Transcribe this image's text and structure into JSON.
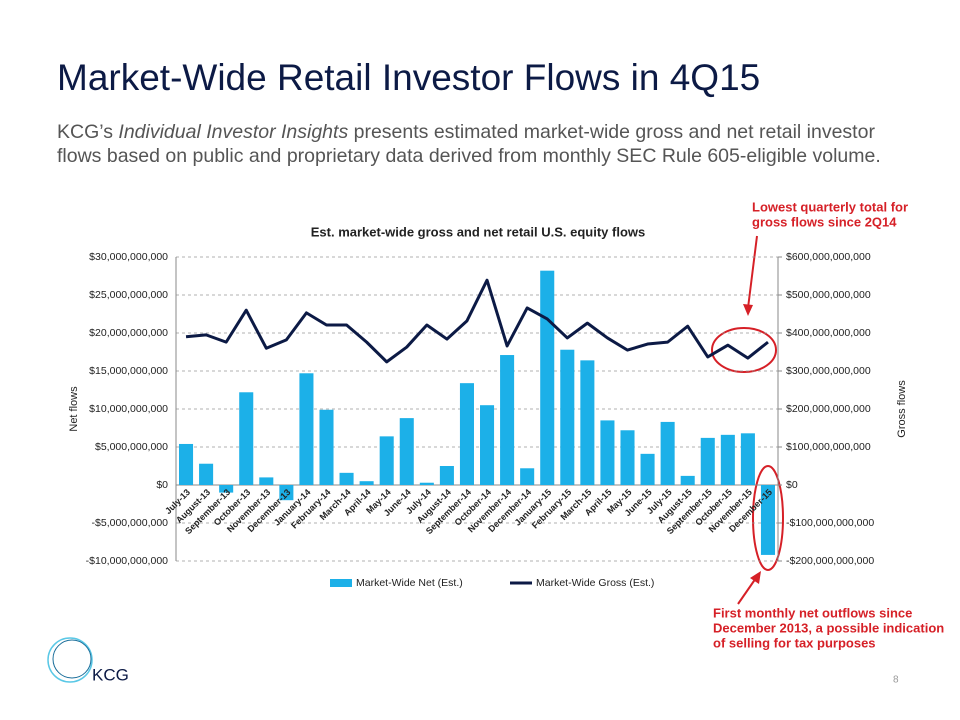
{
  "page": {
    "title": "Market-Wide Retail Investor Flows in 4Q15",
    "intro": [
      "KCG’s ",
      "Individual Investor Insights",
      " presents estimated market-wide gross and net retail investor flows based on public and proprietary data derived from monthly SEC Rule 605-eligible volume."
    ],
    "annotation_top": [
      "Lowest quarterly total for",
      "gross flows since 2Q14"
    ],
    "annotation_bottom": [
      "First monthly net outflows since",
      "December 2013, a possible indication",
      "of selling for tax purposes"
    ],
    "logo": "KCG",
    "page_number": "8"
  },
  "chart_data": {
    "type": "bar-line",
    "title": "Est. market-wide gross and net retail U.S. equity flows",
    "y_label": "Net flows",
    "y2_label": "Gross flows",
    "categories": [
      "July-13",
      "August-13",
      "September-13",
      "October-13",
      "November-13",
      "December-13",
      "January-14",
      "February-14",
      "March-14",
      "April-14",
      "May-14",
      "June-14",
      "July-14",
      "August-14",
      "September-14",
      "October-14",
      "November-14",
      "December-14",
      "January-15",
      "February-15",
      "March-15",
      "April-15",
      "May-15",
      "June-15",
      "July-15",
      "August-15",
      "September-15",
      "October-15",
      "November-15",
      "December-15"
    ],
    "series": [
      {
        "name": "Market-Wide Net (Est.)",
        "type": "bar",
        "color": "#1cb0e8",
        "values": [
          5400000000,
          2800000000,
          -1000000000,
          12200000000,
          1000000000,
          -2000000000,
          14700000000,
          9900000000,
          1600000000,
          500000000,
          6400000000,
          8800000000,
          300000000,
          2500000000,
          13400000000,
          10500000000,
          17100000000,
          2200000000,
          28200000000,
          17800000000,
          16400000000,
          8500000000,
          7200000000,
          4100000000,
          8300000000,
          1200000000,
          6200000000,
          6600000000,
          6800000000,
          -9200000000
        ]
      },
      {
        "name": "Market-Wide Gross (Est.)",
        "type": "line",
        "axis": "y2",
        "color": "#0c1a45",
        "values": [
          390000000000,
          395000000000,
          376000000000,
          460000000000,
          360000000000,
          382000000000,
          453000000000,
          421000000000,
          421000000000,
          376000000000,
          324000000000,
          363000000000,
          421000000000,
          384000000000,
          432000000000,
          539000000000,
          366000000000,
          466000000000,
          437000000000,
          387000000000,
          426000000000,
          387000000000,
          355000000000,
          371000000000,
          376000000000,
          418000000000,
          337000000000,
          368000000000,
          334000000000,
          376000000000
        ]
      }
    ],
    "ylim": [
      -10000000000,
      30000000000
    ],
    "yticks": [
      {
        "value": -10000000000,
        "label": "-$10,000,000,000"
      },
      {
        "value": -5000000000,
        "label": "-$5,000,000,000"
      },
      {
        "value": 0,
        "label": "$0"
      },
      {
        "value": 5000000000,
        "label": "$5,000,000,000"
      },
      {
        "value": 10000000000,
        "label": "$10,000,000,000"
      },
      {
        "value": 15000000000,
        "label": "$15,000,000,000"
      },
      {
        "value": 20000000000,
        "label": "$20,000,000,000"
      },
      {
        "value": 25000000000,
        "label": "$25,000,000,000"
      },
      {
        "value": 30000000000,
        "label": "$30,000,000,000"
      }
    ],
    "y2lim": [
      -200000000000,
      600000000000
    ],
    "y2ticks": [
      {
        "value": -200000000000,
        "label": "-$200,000,000,000"
      },
      {
        "value": -100000000000,
        "label": "-$100,000,000,000"
      },
      {
        "value": 0,
        "label": "$0"
      },
      {
        "value": 100000000000,
        "label": "$100,000,000,000"
      },
      {
        "value": 200000000000,
        "label": "$200,000,000,000"
      },
      {
        "value": 300000000000,
        "label": "$300,000,000,000"
      },
      {
        "value": 400000000000,
        "label": "$400,000,000,000"
      },
      {
        "value": 500000000000,
        "label": "$500,000,000,000"
      },
      {
        "value": 600000000000,
        "label": "$600,000,000,000"
      }
    ],
    "grid": true,
    "legend": "bottom"
  }
}
